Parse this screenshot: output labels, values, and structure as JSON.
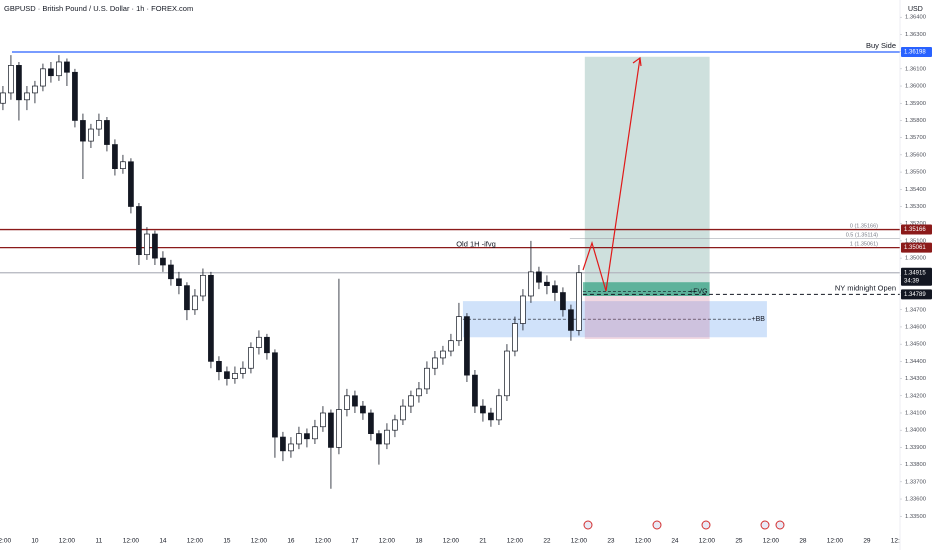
{
  "chart_data": {
    "type": "candlestick",
    "title": "GBPUSD · British Pound / U.S. Dollar · 1h · FOREX.com",
    "currency": "USD",
    "countdown": "34:39",
    "up_color": "#ffffff",
    "down_color": "#131722",
    "x": [
      -12,
      -9,
      -6,
      -3,
      0,
      3,
      6,
      9,
      12,
      15,
      18,
      21,
      24,
      27,
      30,
      33,
      36,
      39,
      42,
      45,
      48,
      51,
      54,
      57,
      60,
      63,
      66,
      69,
      72,
      75,
      78,
      81,
      84,
      87,
      90,
      93,
      96,
      99,
      102,
      105,
      108,
      111,
      114,
      117,
      120,
      123,
      126,
      129,
      132,
      135,
      138,
      141,
      144,
      147,
      150,
      153,
      156,
      159,
      162,
      165,
      168,
      171,
      174,
      177,
      180,
      183,
      186,
      189,
      192,
      195,
      198,
      201,
      204
    ],
    "candles": [
      [
        1.359,
        1.36,
        1.3586,
        1.3596
      ],
      [
        1.3596,
        1.3618,
        1.3592,
        1.3612
      ],
      [
        1.3612,
        1.3614,
        1.358,
        1.3592
      ],
      [
        1.3592,
        1.36,
        1.3586,
        1.3596
      ],
      [
        1.3596,
        1.3603,
        1.359,
        1.36
      ],
      [
        1.36,
        1.3613,
        1.3597,
        1.361
      ],
      [
        1.361,
        1.3614,
        1.3602,
        1.3606
      ],
      [
        1.3606,
        1.3618,
        1.3603,
        1.3614
      ],
      [
        1.3614,
        1.3616,
        1.36,
        1.3608
      ],
      [
        1.3608,
        1.361,
        1.3576,
        1.358
      ],
      [
        1.358,
        1.3584,
        1.3546,
        1.3568
      ],
      [
        1.3568,
        1.3578,
        1.3564,
        1.3575
      ],
      [
        1.3575,
        1.3584,
        1.3571,
        1.358
      ],
      [
        1.358,
        1.3582,
        1.3562,
        1.3566
      ],
      [
        1.3566,
        1.3569,
        1.3548,
        1.3552
      ],
      [
        1.3552,
        1.356,
        1.3549,
        1.3556
      ],
      [
        1.3556,
        1.3558,
        1.3526,
        1.353
      ],
      [
        1.353,
        1.3532,
        1.3496,
        1.3502
      ],
      [
        1.3502,
        1.3518,
        1.3499,
        1.3514
      ],
      [
        1.3514,
        1.3516,
        1.3496,
        1.35
      ],
      [
        1.35,
        1.3504,
        1.3492,
        1.3496
      ],
      [
        1.3496,
        1.3499,
        1.3484,
        1.3488
      ],
      [
        1.3488,
        1.3492,
        1.3479,
        1.3484
      ],
      [
        1.3484,
        1.3486,
        1.3464,
        1.347
      ],
      [
        1.347,
        1.3482,
        1.3467,
        1.3478
      ],
      [
        1.3478,
        1.3494,
        1.3475,
        1.349
      ],
      [
        1.349,
        1.3492,
        1.3436,
        1.344
      ],
      [
        1.344,
        1.3443,
        1.3429,
        1.3434
      ],
      [
        1.3434,
        1.3437,
        1.3426,
        1.343
      ],
      [
        1.343,
        1.3437,
        1.3427,
        1.3433
      ],
      [
        1.3433,
        1.344,
        1.343,
        1.3436
      ],
      [
        1.3436,
        1.3451,
        1.3433,
        1.3448
      ],
      [
        1.3448,
        1.3458,
        1.3444,
        1.3454
      ],
      [
        1.3454,
        1.3456,
        1.3441,
        1.3445
      ],
      [
        1.3445,
        1.3447,
        1.3384,
        1.3396
      ],
      [
        1.3396,
        1.3399,
        1.3382,
        1.3388
      ],
      [
        1.3388,
        1.3396,
        1.3384,
        1.3392
      ],
      [
        1.3392,
        1.3402,
        1.3389,
        1.3398
      ],
      [
        1.3398,
        1.3401,
        1.339,
        1.3395
      ],
      [
        1.3395,
        1.3406,
        1.3392,
        1.3402
      ],
      [
        1.3402,
        1.3414,
        1.3399,
        1.341
      ],
      [
        1.341,
        1.3412,
        1.3366,
        1.339
      ],
      [
        1.339,
        1.3488,
        1.3386,
        1.3412
      ],
      [
        1.3412,
        1.3424,
        1.3408,
        1.342
      ],
      [
        1.342,
        1.3423,
        1.341,
        1.3414
      ],
      [
        1.3414,
        1.3417,
        1.3406,
        1.341
      ],
      [
        1.341,
        1.3412,
        1.3394,
        1.3398
      ],
      [
        1.3398,
        1.34,
        1.338,
        1.3392
      ],
      [
        1.3392,
        1.3404,
        1.3389,
        1.34
      ],
      [
        1.34,
        1.3409,
        1.3396,
        1.3406
      ],
      [
        1.3406,
        1.3418,
        1.3403,
        1.3414
      ],
      [
        1.3414,
        1.3423,
        1.341,
        1.342
      ],
      [
        1.342,
        1.3428,
        1.3416,
        1.3424
      ],
      [
        1.3424,
        1.344,
        1.3421,
        1.3436
      ],
      [
        1.3436,
        1.3446,
        1.3432,
        1.3442
      ],
      [
        1.3442,
        1.3449,
        1.3438,
        1.3446
      ],
      [
        1.3446,
        1.3456,
        1.3443,
        1.3452
      ],
      [
        1.3452,
        1.3474,
        1.3449,
        1.3466
      ],
      [
        1.3466,
        1.3468,
        1.3428,
        1.3432
      ],
      [
        1.3432,
        1.3435,
        1.341,
        1.3414
      ],
      [
        1.3414,
        1.3418,
        1.3405,
        1.341
      ],
      [
        1.341,
        1.3413,
        1.3402,
        1.3406
      ],
      [
        1.3406,
        1.3424,
        1.3403,
        1.342
      ],
      [
        1.342,
        1.345,
        1.3417,
        1.3446
      ],
      [
        1.3446,
        1.3466,
        1.3443,
        1.3462
      ],
      [
        1.3462,
        1.3482,
        1.3458,
        1.3478
      ],
      [
        1.3478,
        1.351,
        1.3474,
        1.3492
      ],
      [
        1.3492,
        1.3495,
        1.3482,
        1.3486
      ],
      [
        1.3486,
        1.349,
        1.3479,
        1.3484
      ],
      [
        1.3484,
        1.3487,
        1.3475,
        1.348
      ],
      [
        1.348,
        1.3483,
        1.3466,
        1.347
      ],
      [
        1.347,
        1.3473,
        1.3452,
        1.3458
      ],
      [
        1.3458,
        1.3496,
        1.3455,
        1.34915
      ]
    ],
    "xlim": [
      -13.1,
      324.4
    ],
    "ylim": [
      1.3342,
      1.365
    ],
    "xticks": [
      {
        "value": -12,
        "label": "12:00"
      },
      {
        "value": 0,
        "label": "10"
      },
      {
        "value": 12,
        "label": "12:00"
      },
      {
        "value": 24,
        "label": "11"
      },
      {
        "value": 36,
        "label": "12:00"
      },
      {
        "value": 48,
        "label": "14"
      },
      {
        "value": 60,
        "label": "12:00"
      },
      {
        "value": 72,
        "label": "15"
      },
      {
        "value": 84,
        "label": "12:00"
      },
      {
        "value": 96,
        "label": "16"
      },
      {
        "value": 108,
        "label": "12:00"
      },
      {
        "value": 120,
        "label": "17"
      },
      {
        "value": 132,
        "label": "12:00"
      },
      {
        "value": 144,
        "label": "18"
      },
      {
        "value": 156,
        "label": "12:00"
      },
      {
        "value": 168,
        "label": "21"
      },
      {
        "value": 180,
        "label": "12:00"
      },
      {
        "value": 192,
        "label": "22"
      },
      {
        "value": 204,
        "label": "12:00"
      },
      {
        "value": 216,
        "label": "23"
      },
      {
        "value": 228,
        "label": "12:00"
      },
      {
        "value": 240,
        "label": "24"
      },
      {
        "value": 252,
        "label": "12:00"
      },
      {
        "value": 264,
        "label": "25"
      },
      {
        "value": 276,
        "label": "12:00"
      },
      {
        "value": 288,
        "label": "28"
      },
      {
        "value": 300,
        "label": "12:00"
      },
      {
        "value": 312,
        "label": "29"
      },
      {
        "value": 324,
        "label": "12:00"
      }
    ],
    "yticks": [
      {
        "value": 1.335,
        "label": "1.33500"
      },
      {
        "value": 1.336,
        "label": "1.33600"
      },
      {
        "value": 1.337,
        "label": "1.33700"
      },
      {
        "value": 1.338,
        "label": "1.33800"
      },
      {
        "value": 1.339,
        "label": "1.33900"
      },
      {
        "value": 1.34,
        "label": "1.34000"
      },
      {
        "value": 1.341,
        "label": "1.34100"
      },
      {
        "value": 1.342,
        "label": "1.34200"
      },
      {
        "value": 1.343,
        "label": "1.34300"
      },
      {
        "value": 1.344,
        "label": "1.34400"
      },
      {
        "value": 1.345,
        "label": "1.34500"
      },
      {
        "value": 1.346,
        "label": "1.34600"
      },
      {
        "value": 1.347,
        "label": "1.34700"
      },
      {
        "value": 1.348,
        "label": "1.34800"
      },
      {
        "value": 1.349,
        "label": "1.34900"
      },
      {
        "value": 1.35,
        "label": "1.35000"
      },
      {
        "value": 1.351,
        "label": "1.35100"
      },
      {
        "value": 1.352,
        "label": "1.35200"
      },
      {
        "value": 1.353,
        "label": "1.35300"
      },
      {
        "value": 1.354,
        "label": "1.35400"
      },
      {
        "value": 1.355,
        "label": "1.35500"
      },
      {
        "value": 1.356,
        "label": "1.35600"
      },
      {
        "value": 1.357,
        "label": "1.35700"
      },
      {
        "value": 1.358,
        "label": "1.35800"
      },
      {
        "value": 1.359,
        "label": "1.35900"
      },
      {
        "value": 1.36,
        "label": "1.36000"
      },
      {
        "value": 1.361,
        "label": "1.36100"
      },
      {
        "value": 1.362,
        "label": "1.36200"
      },
      {
        "value": 1.363,
        "label": "1.36300"
      },
      {
        "value": 1.364,
        "label": "1.36400"
      }
    ],
    "zones": [
      {
        "x": [
          160.5,
          274.5
        ],
        "y": [
          1.3454,
          1.3475
        ],
        "color": "rgba(100,160,240,0.3)",
        "mid": 1.34645,
        "text": "+BB"
      },
      {
        "x": [
          206.2,
          253
        ],
        "y": [
          1.3478,
          1.3617
        ],
        "color": "rgba(60,130,120,0.25)"
      },
      {
        "x": [
          206.2,
          253
        ],
        "y": [
          1.3453,
          1.3478
        ],
        "color": "rgba(200,100,140,0.25)"
      },
      {
        "x": [
          205.5,
          253
        ],
        "y": [
          1.3478,
          1.3486
        ],
        "color": "rgba(0,140,100,0.55)",
        "mid": 1.34805,
        "text": "+FVG"
      }
    ],
    "levels": [
      {
        "value": 1.36198,
        "color": "#2962ff",
        "from": -8.6,
        "text": "Buy Side"
      },
      {
        "value": 1.35166,
        "color": "#8b1a1a",
        "from": -13.1
      },
      {
        "value": 1.35061,
        "color": "#8b1a1a",
        "from": -13.1
      },
      {
        "value": 1.34915,
        "color": "#b2b5be",
        "tag_color": "#131722",
        "from": -13.1,
        "countdown": true
      },
      {
        "value": 1.34789,
        "color": "#131722",
        "from": 205.5,
        "dashed": true,
        "text": "NY midnight Open"
      }
    ],
    "fib": {
      "from": 200.6,
      "values": [
        1.35166,
        1.35114,
        1.35061
      ],
      "labels": [
        "0 (1.35166)",
        "0.5 (1.35114)",
        "1 (1.35061)"
      ]
    },
    "annotations": [
      {
        "text": "Old 1H -ifvg",
        "x": 165.4,
        "y": 1.3508
      }
    ]
  }
}
